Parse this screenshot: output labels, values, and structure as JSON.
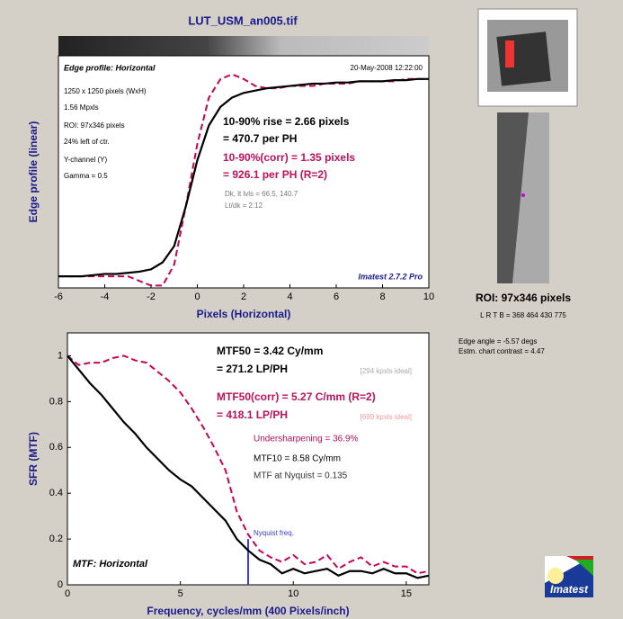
{
  "title": "LUT_USM_an005.tif",
  "chart_data": [
    {
      "type": "line",
      "xlabel": "Pixels (Horizontal)",
      "ylabel": "Edge profile (linear)",
      "xlim": [
        -6,
        10
      ],
      "xticks": [
        -6,
        -4,
        -2,
        0,
        2,
        4,
        6,
        8,
        10
      ],
      "ylim": [
        0,
        1
      ],
      "x": [
        -6,
        -5.5,
        -5,
        -4.5,
        -4,
        -3.5,
        -3,
        -2.5,
        -2,
        -1.5,
        -1,
        -0.5,
        0,
        0.5,
        1,
        1.5,
        2,
        2.5,
        3,
        3.5,
        4,
        4.5,
        5,
        5.5,
        6,
        6.5,
        7,
        7.5,
        8,
        8.5,
        9,
        9.5,
        10
      ],
      "series": [
        {
          "color": "#cc0055",
          "dash": true,
          "values": [
            0.05,
            0.05,
            0.05,
            0.05,
            0.05,
            0.05,
            0.05,
            0.03,
            0.01,
            0.01,
            0.1,
            0.35,
            0.62,
            0.82,
            0.9,
            0.92,
            0.9,
            0.87,
            0.86,
            0.86,
            0.87,
            0.87,
            0.87,
            0.88,
            0.88,
            0.88,
            0.89,
            0.89,
            0.89,
            0.89,
            0.9,
            0.9,
            0.9
          ]
        },
        {
          "color": "#000000",
          "dash": false,
          "values": [
            0.05,
            0.05,
            0.05,
            0.055,
            0.06,
            0.06,
            0.065,
            0.07,
            0.08,
            0.11,
            0.18,
            0.35,
            0.55,
            0.7,
            0.78,
            0.82,
            0.84,
            0.85,
            0.86,
            0.865,
            0.87,
            0.875,
            0.88,
            0.88,
            0.885,
            0.885,
            0.89,
            0.89,
            0.89,
            0.895,
            0.895,
            0.9,
            0.9
          ]
        }
      ],
      "annotations": [
        "Edge profile: Horizontal",
        "20-May-2008 12:22:00",
        "1250 x 1250 pixels (WxH)",
        "1.56 Mpxls",
        "ROI:  97x346 pixels",
        "24% left of ctr.",
        "Y-channel  (Y)",
        "Gamma = 0.5",
        "10-90% rise = 2.66 pixels",
        "= 470.7 per PH",
        "10-90%(corr) = 1.35 pixels",
        "= 926.1 per PH  (R=2)",
        "Dk, lt lvls = 66.5, 140.7",
        "Lt/dk = 2.12",
        "Imatest 2.7.2 Pro"
      ]
    },
    {
      "type": "line",
      "xlabel": "Frequency, cycles/mm  (400 Pixels/inch)",
      "ylabel": "SFR (MTF)",
      "xlim": [
        0,
        16
      ],
      "xticks": [
        0,
        5,
        10,
        15
      ],
      "ylim": [
        0,
        1.1
      ],
      "yticks": [
        0,
        0.2,
        0.4,
        0.6,
        0.8,
        1
      ],
      "x": [
        0,
        0.5,
        1,
        1.5,
        2,
        2.5,
        3,
        3.5,
        4,
        4.5,
        5,
        5.5,
        6,
        6.5,
        7,
        7.5,
        8,
        8.5,
        9,
        9.5,
        10,
        10.5,
        11,
        11.5,
        12,
        12.5,
        13,
        13.5,
        14,
        14.5,
        15,
        15.5,
        16
      ],
      "series": [
        {
          "color": "#cc0055",
          "dash": true,
          "values": [
            1,
            0.96,
            0.97,
            0.97,
            0.99,
            1.0,
            0.98,
            0.97,
            0.93,
            0.89,
            0.84,
            0.77,
            0.69,
            0.6,
            0.5,
            0.32,
            0.22,
            0.15,
            0.12,
            0.1,
            0.13,
            0.09,
            0.1,
            0.13,
            0.07,
            0.1,
            0.12,
            0.08,
            0.1,
            0.08,
            0.08,
            0.05,
            0.06
          ]
        },
        {
          "color": "#000000",
          "dash": false,
          "values": [
            1,
            0.94,
            0.88,
            0.83,
            0.77,
            0.71,
            0.66,
            0.6,
            0.55,
            0.5,
            0.46,
            0.43,
            0.38,
            0.33,
            0.28,
            0.2,
            0.15,
            0.11,
            0.09,
            0.05,
            0.07,
            0.05,
            0.06,
            0.07,
            0.04,
            0.06,
            0.06,
            0.05,
            0.07,
            0.05,
            0.05,
            0.03,
            0.04
          ]
        }
      ],
      "nyquist": {
        "x": 8,
        "height": 0.2,
        "label": "Nyquist freq."
      },
      "annotations": [
        "MTF50 = 3.42 Cy/mm",
        "= 271.2 LP/PH",
        "[294 kpxls ideal]",
        "MTF50(corr) = 5.27 C/mm  (R=2)",
        "= 418.1 LP/PH",
        "[699 kpxls ideal]",
        "Undersharpening = 36.9%",
        "MTF10 = 8.58 Cy/mm",
        "MTF at Nyquist = 0.135",
        "MTF: Horizontal"
      ]
    }
  ],
  "side": {
    "roi": "ROI:  97x346 pixels",
    "lrtb": "L R  T B = 368 464  430 775",
    "edge_angle": "Edge angle = -5.57 degs",
    "contrast": "Estm. chart contrast = 4.47",
    "logo": "Imatest"
  }
}
